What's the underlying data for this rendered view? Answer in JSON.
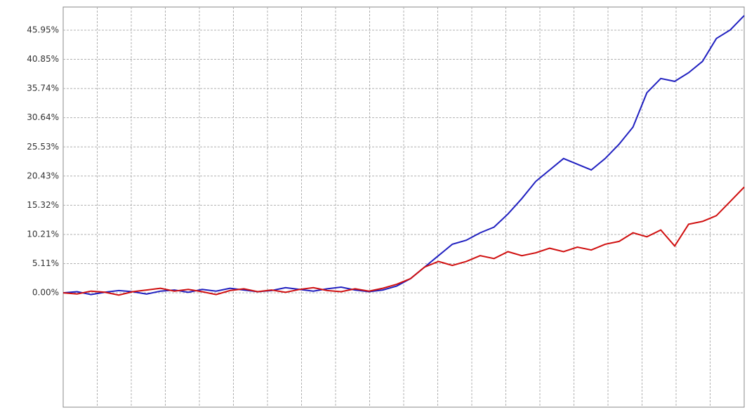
{
  "chart_data": {
    "type": "line",
    "ylim": [
      -20,
      50
    ],
    "yticks": [
      {
        "value": 0.0,
        "label": "0.00%"
      },
      {
        "value": 5.11,
        "label": "5.11%"
      },
      {
        "value": 10.21,
        "label": "10.21%"
      },
      {
        "value": 15.32,
        "label": "15.32%"
      },
      {
        "value": 20.43,
        "label": "20.43%"
      },
      {
        "value": 25.53,
        "label": "25.53%"
      },
      {
        "value": 30.64,
        "label": "30.64%"
      },
      {
        "value": 35.74,
        "label": "35.74%"
      },
      {
        "value": 40.85,
        "label": "40.85%"
      },
      {
        "value": 45.95,
        "label": "45.95%"
      }
    ],
    "grid": true,
    "series": [
      {
        "color": "#2020c0",
        "values": [
          0,
          0.2,
          -0.3,
          0.1,
          0.4,
          0.2,
          -0.2,
          0.3,
          0.5,
          0.1,
          0.6,
          0.3,
          0.8,
          0.5,
          0.2,
          0.4,
          0.9,
          0.6,
          0.3,
          0.7,
          1.0,
          0.5,
          0.2,
          0.5,
          1.2,
          2.5,
          4.5,
          6.5,
          8.5,
          9.2,
          10.5,
          11.5,
          13.8,
          16.5,
          19.5,
          21.5,
          23.5,
          22.5,
          21.5,
          23.5,
          26,
          29,
          35,
          37.5,
          37,
          38.5,
          40.5,
          44.5,
          46,
          48.5
        ]
      },
      {
        "color": "#d01010",
        "values": [
          0,
          -0.2,
          0.3,
          0.1,
          -0.4,
          0.2,
          0.5,
          0.8,
          0.3,
          0.6,
          0.2,
          -0.3,
          0.4,
          0.7,
          0.2,
          0.5,
          0.1,
          0.6,
          0.9,
          0.4,
          0.2,
          0.7,
          0.3,
          0.8,
          1.5,
          2.5,
          4.5,
          5.5,
          4.8,
          5.5,
          6.5,
          6.0,
          7.2,
          6.5,
          7.0,
          7.8,
          7.2,
          8.0,
          7.5,
          8.5,
          9.0,
          10.5,
          9.8,
          11.0,
          8.2,
          12.0,
          12.5,
          13.5,
          16.0,
          18.5
        ]
      }
    ]
  }
}
